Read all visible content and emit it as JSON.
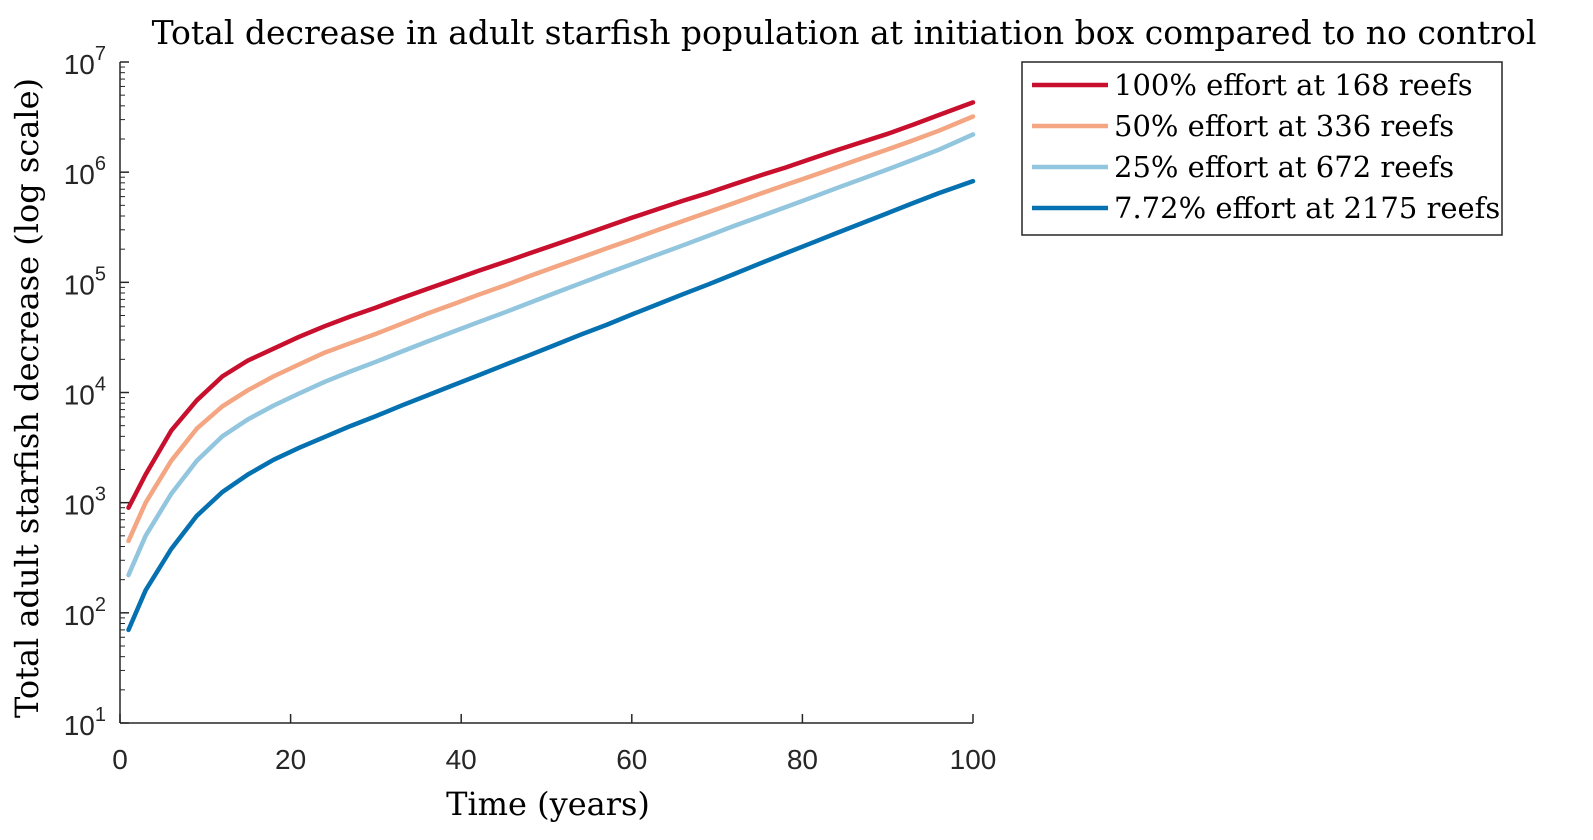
{
  "chart_data": {
    "type": "line",
    "title": "Total decrease in adult starfish population at initiation box compared to no control",
    "xlabel": "Time (years)",
    "ylabel": "Total adult starfish decrease (log scale)",
    "xlim": [
      0,
      100
    ],
    "ylim": [
      10,
      10000000
    ],
    "yscale": "log",
    "grid": false,
    "legend_position": "outside-top-right",
    "x_ticks": [
      "0",
      "20",
      "40",
      "60",
      "80",
      "100"
    ],
    "y_ticks": [
      {
        "base": "10",
        "exp": "1"
      },
      {
        "base": "10",
        "exp": "2"
      },
      {
        "base": "10",
        "exp": "3"
      },
      {
        "base": "10",
        "exp": "4"
      },
      {
        "base": "10",
        "exp": "5"
      },
      {
        "base": "10",
        "exp": "6"
      },
      {
        "base": "10",
        "exp": "7"
      }
    ],
    "x": [
      1,
      3,
      6,
      9,
      12,
      15,
      18,
      21,
      24,
      27,
      30,
      33,
      36,
      39,
      42,
      45,
      48,
      51,
      54,
      57,
      60,
      63,
      66,
      69,
      72,
      75,
      78,
      81,
      84,
      87,
      90,
      93,
      96,
      100
    ],
    "series": [
      {
        "name": "100% effort at 168 reefs",
        "color": "#c8102e",
        "values": [
          900,
          1800,
          4500,
          8500,
          14000,
          19500,
          25000,
          32000,
          40000,
          49000,
          59000,
          72000,
          87000,
          105000,
          127000,
          152000,
          183000,
          220000,
          265000,
          320000,
          385000,
          460000,
          550000,
          650000,
          780000,
          930000,
          1100000,
          1320000,
          1580000,
          1880000,
          2230000,
          2700000,
          3300000,
          4300000
        ]
      },
      {
        "name": "50% effort at 336 reefs",
        "color": "#f4a582",
        "values": [
          450,
          1000,
          2400,
          4700,
          7500,
          10500,
          14000,
          18000,
          23000,
          28000,
          34000,
          42000,
          52000,
          63000,
          77000,
          93000,
          114000,
          138000,
          167000,
          203000,
          245000,
          298000,
          360000,
          435000,
          525000,
          635000,
          765000,
          920000,
          1110000,
          1340000,
          1610000,
          1950000,
          2380000,
          3200000
        ]
      },
      {
        "name": "25% effort at 672 reefs",
        "color": "#92c5de",
        "values": [
          220,
          500,
          1200,
          2400,
          4000,
          5700,
          7600,
          9800,
          12500,
          15500,
          19000,
          23500,
          29000,
          35500,
          43500,
          53000,
          65000,
          80000,
          98000,
          120000,
          146000,
          178000,
          217000,
          265000,
          325000,
          395000,
          480000,
          585000,
          715000,
          870000,
          1060000,
          1300000,
          1600000,
          2200000
        ]
      },
      {
        "name": "7.72% effort at 2175 reefs",
        "color": "#0571b0",
        "values": [
          70,
          160,
          380,
          760,
          1250,
          1800,
          2450,
          3150,
          3950,
          4950,
          6100,
          7600,
          9400,
          11600,
          14300,
          17700,
          21800,
          27000,
          33500,
          41000,
          51000,
          63000,
          78000,
          96000,
          119000,
          148000,
          183000,
          226000,
          280000,
          345000,
          425000,
          525000,
          645000,
          830000
        ]
      }
    ]
  }
}
